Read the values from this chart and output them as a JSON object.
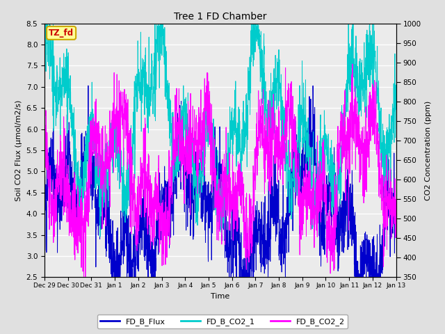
{
  "title": "Tree 1 FD Chamber",
  "xlabel": "Time",
  "ylabel_left": "Soil CO2 Flux (μmol/m2/s)",
  "ylabel_right": "CO2 Concentration (ppm)",
  "ylim_left": [
    2.5,
    8.5
  ],
  "ylim_right": [
    350,
    1000
  ],
  "tag_text": "TZ_fd",
  "tag_bg": "#FFFF99",
  "tag_border": "#CCAA00",
  "tag_text_color": "#CC0000",
  "x_tick_labels": [
    "Dec 29",
    "Dec 30",
    "Dec 31",
    "Jan 1",
    "Jan 2",
    "Jan 3",
    "Jan 4",
    "Jan 5",
    "Jan 6",
    "Jan 7",
    "Jan 8",
    "Jan 9",
    "Jan 10",
    "Jan 11",
    "Jan 12",
    "Jan 13"
  ],
  "colors": {
    "FD_B_Flux": "#0000CC",
    "FD_B_CO2_1": "#00CCCC",
    "FD_B_CO2_2": "#FF00FF"
  },
  "legend_labels": [
    "FD_B_Flux",
    "FD_B_CO2_1",
    "FD_B_CO2_2"
  ],
  "background_color": "#E0E0E0",
  "axes_bg": "#EBEBEB",
  "grid_color": "#FFFFFF",
  "n_points": 3000,
  "seed": 42
}
